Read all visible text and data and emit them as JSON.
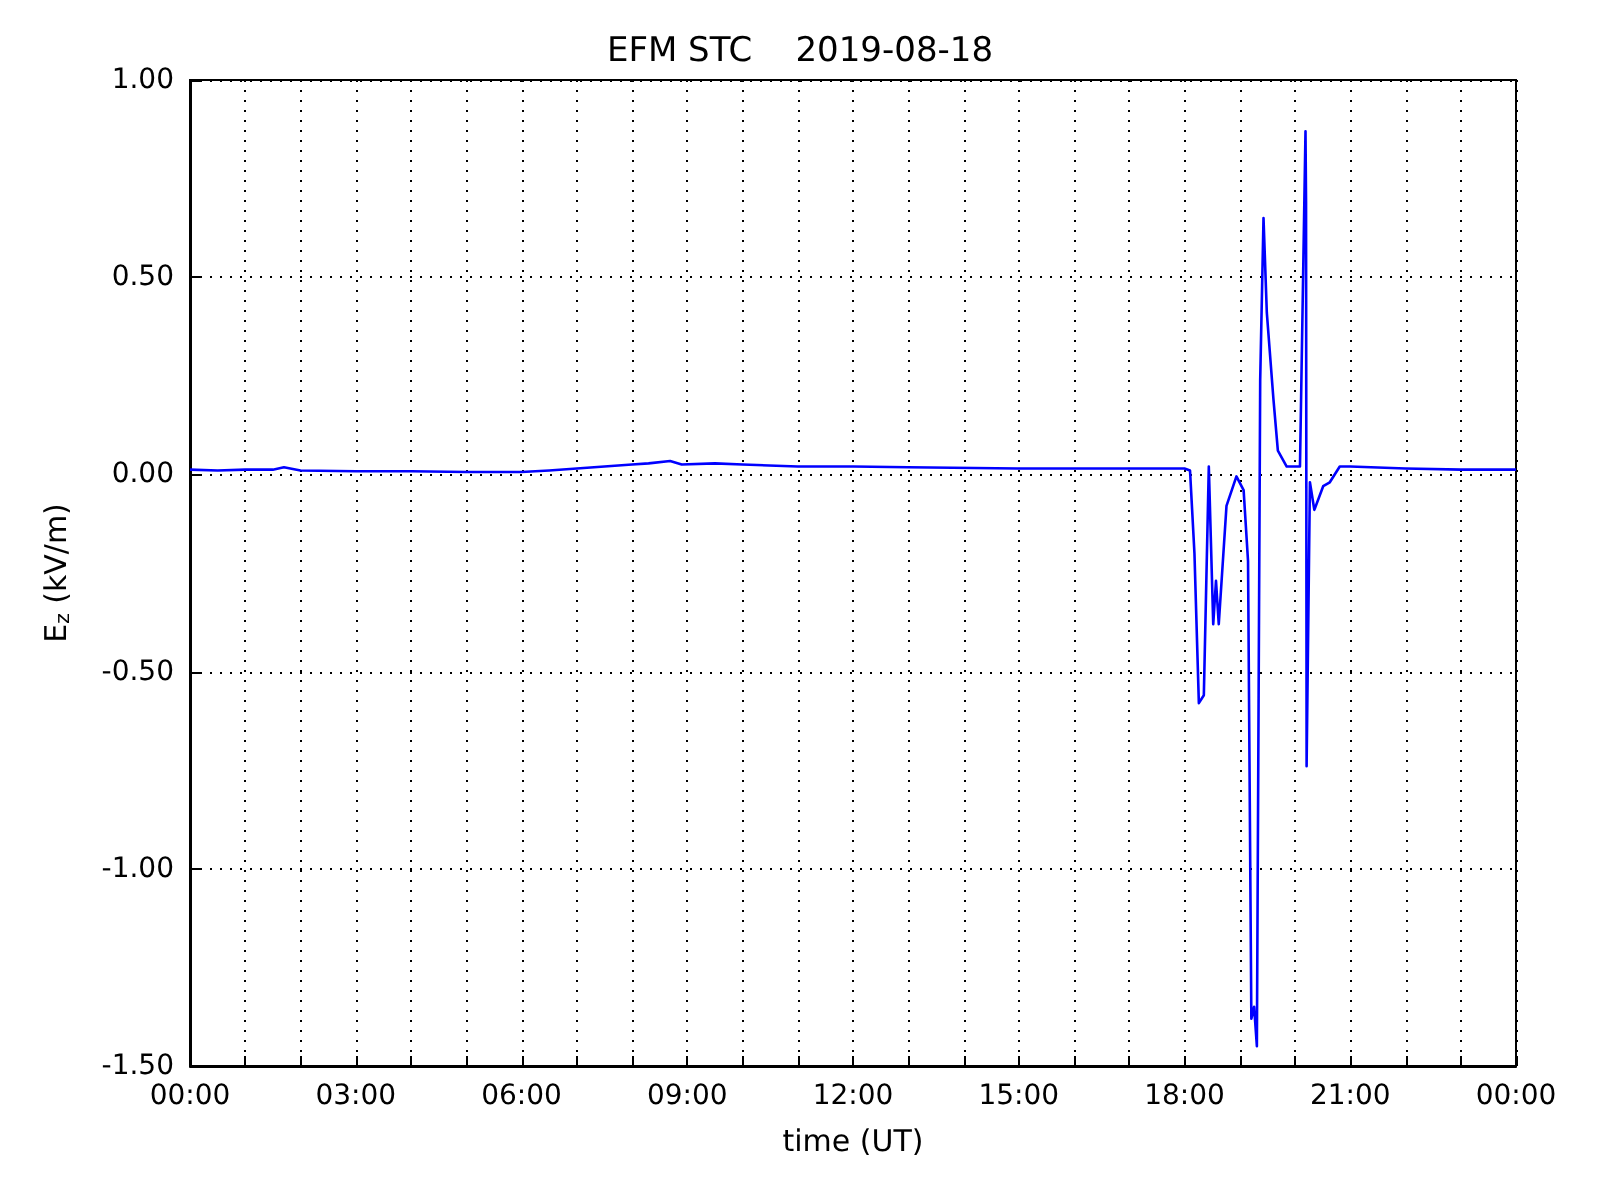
{
  "chart_data": {
    "type": "line",
    "title": "EFM STC    2019-08-18",
    "xlabel": "time (UT)",
    "ylabel": "E$_{z}$ (kV/m)",
    "x": [
      0,
      0.5,
      1,
      1.5,
      1.7,
      2,
      3,
      4,
      5,
      6,
      6.5,
      7,
      7.5,
      8,
      8.3,
      8.69,
      8.9,
      9.5,
      10,
      11,
      12,
      13,
      15,
      17,
      18,
      18.1,
      18.18,
      18.26,
      18.35,
      18.44,
      18.52,
      18.57,
      18.62,
      18.76,
      18.94,
      19.07,
      19.15,
      19.21,
      19.26,
      19.31,
      19.37,
      19.43,
      19.49,
      19.61,
      19.69,
      19.85,
      20.09,
      20.19,
      20.2,
      20.21,
      20.27,
      20.35,
      20.51,
      20.63,
      20.81,
      21,
      22,
      23,
      24
    ],
    "series": [
      {
        "color": "#0000ff",
        "values": [
          0.012,
          0.01,
          0.012,
          0.012,
          0.018,
          0.01,
          0.008,
          0.008,
          0.006,
          0.006,
          0.01,
          0.015,
          0.02,
          0.025,
          0.028,
          0.034,
          0.025,
          0.028,
          0.025,
          0.02,
          0.02,
          0.018,
          0.015,
          0.015,
          0.015,
          0.01,
          -0.2,
          -0.58,
          -0.56,
          0.02,
          -0.38,
          -0.27,
          -0.38,
          -0.08,
          -0.005,
          -0.04,
          -0.22,
          -1.38,
          -1.35,
          -1.45,
          0.24,
          0.65,
          0.41,
          0.19,
          0.06,
          0.02,
          0.02,
          0.87,
          0.69,
          -0.74,
          -0.02,
          -0.09,
          -0.03,
          -0.02,
          0.02,
          0.02,
          0.015,
          0.012,
          0.012
        ]
      }
    ],
    "xlim": [
      0,
      24
    ],
    "xticks": [
      {
        "value": 0,
        "label": "00:00"
      },
      {
        "value": 1,
        "label": null
      },
      {
        "value": 2,
        "label": null
      },
      {
        "value": 3,
        "label": "03:00"
      },
      {
        "value": 4,
        "label": null
      },
      {
        "value": 5,
        "label": null
      },
      {
        "value": 6,
        "label": "06:00"
      },
      {
        "value": 7,
        "label": null
      },
      {
        "value": 8,
        "label": null
      },
      {
        "value": 9,
        "label": "09:00"
      },
      {
        "value": 10,
        "label": null
      },
      {
        "value": 11,
        "label": null
      },
      {
        "value": 12,
        "label": "12:00"
      },
      {
        "value": 13,
        "label": null
      },
      {
        "value": 14,
        "label": null
      },
      {
        "value": 15,
        "label": "15:00"
      },
      {
        "value": 16,
        "label": null
      },
      {
        "value": 17,
        "label": null
      },
      {
        "value": 18,
        "label": "18:00"
      },
      {
        "value": 19,
        "label": null
      },
      {
        "value": 20,
        "label": null
      },
      {
        "value": 21,
        "label": "21:00"
      },
      {
        "value": 22,
        "label": null
      },
      {
        "value": 23,
        "label": null
      },
      {
        "value": 24,
        "label": "00:00"
      }
    ],
    "ylim": [
      -1.5,
      1
    ],
    "yticks": [
      {
        "value": -1.5,
        "label": "-1.50"
      },
      {
        "value": -1,
        "label": "-1.00"
      },
      {
        "value": -0.5,
        "label": "-0.50"
      },
      {
        "value": 0,
        "label": "0.00"
      },
      {
        "value": 0.5,
        "label": "0.50"
      },
      {
        "value": 1,
        "label": "1.00"
      }
    ],
    "grid": true,
    "marker": "none",
    "line_style": "solid"
  }
}
